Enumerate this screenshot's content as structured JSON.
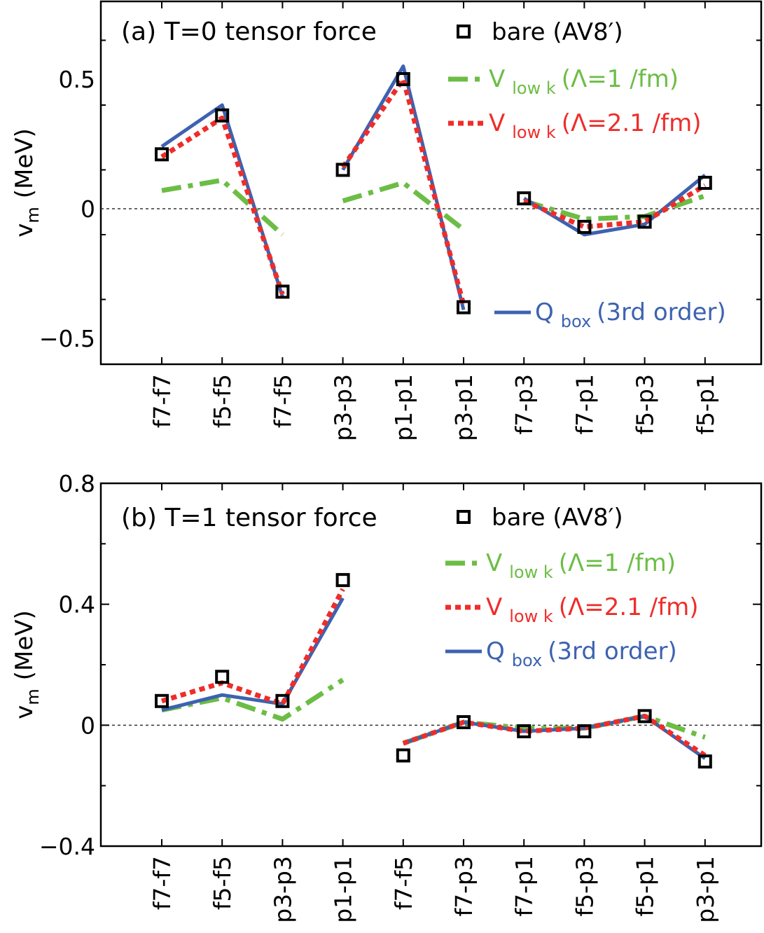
{
  "chart_data": [
    {
      "type": "line",
      "panel": "a",
      "title": "(a) T=0 tensor force",
      "ylabel": "v",
      "ylabel_sub": "m",
      "ylabel_unit": "(MeV)",
      "ylim": [
        -0.6,
        0.8
      ],
      "yticks": [
        -0.5,
        0,
        0.5
      ],
      "ytick_labels": [
        "−0.5",
        "0",
        "0.5"
      ],
      "zero_line": true,
      "categories": [
        "f7-f7",
        "f5-f5",
        "f7-f5",
        "p3-p3",
        "p1-p1",
        "p3-p1",
        "f7-p3",
        "f7-p1",
        "f5-p3",
        "f5-p1"
      ],
      "groups": [
        [
          0,
          1,
          2
        ],
        [
          3,
          4,
          5
        ],
        [
          6,
          7,
          8,
          9
        ]
      ],
      "series": [
        {
          "key": "bare",
          "name": "bare (AV8′)",
          "style": "marker",
          "color": "#000000",
          "values": [
            0.21,
            0.36,
            -0.32,
            0.15,
            0.5,
            -0.38,
            0.04,
            -0.07,
            -0.05,
            0.1
          ]
        },
        {
          "key": "vlowk1",
          "style": "dashdot",
          "color": "#6cbd45",
          "values": [
            0.07,
            0.11,
            -0.1,
            0.03,
            0.1,
            -0.08,
            0.03,
            -0.04,
            -0.03,
            0.05
          ]
        },
        {
          "key": "vlowk21",
          "style": "dotted",
          "color": "#ee2d2a",
          "values": [
            0.2,
            0.35,
            -0.33,
            0.16,
            0.5,
            -0.37,
            0.03,
            -0.07,
            -0.05,
            0.09
          ]
        },
        {
          "key": "qbox",
          "style": "solid",
          "color": "#3d62b0",
          "values": [
            0.24,
            0.4,
            -0.34,
            0.15,
            0.55,
            -0.39,
            0.04,
            -0.1,
            -0.06,
            0.13
          ]
        }
      ],
      "legend": {
        "bare": "bare (AV8′)",
        "vlowk1": {
          "main": "V",
          "sub": "low k",
          "rest": "(Λ=1 /fm)"
        },
        "vlowk21": {
          "main": "V",
          "sub": "low k",
          "rest": "(Λ=2.1 /fm)"
        },
        "qbox": {
          "main": "Q",
          "sub": "box",
          "rest": "(3rd order)"
        }
      }
    },
    {
      "type": "line",
      "panel": "b",
      "title": "(b) T=1 tensor force",
      "ylabel": "v",
      "ylabel_sub": "m",
      "ylabel_unit": "(MeV)",
      "ylim": [
        -0.4,
        0.8
      ],
      "yticks": [
        -0.4,
        0,
        0.4,
        0.8
      ],
      "ytick_labels": [
        "−0.4",
        "0",
        "0.4",
        "0.8"
      ],
      "zero_line": true,
      "categories": [
        "f7-f7",
        "f5-f5",
        "p3-p3",
        "p1-p1",
        "f7-f5",
        "f7-p3",
        "f7-p1",
        "f5-p3",
        "f5-p1",
        "p3-p1"
      ],
      "groups": [
        [
          0,
          1,
          2,
          3
        ],
        [
          4,
          5,
          6,
          7,
          8,
          9
        ]
      ],
      "series": [
        {
          "key": "bare",
          "name": "bare (AV8′)",
          "style": "marker",
          "color": "#000000",
          "values": [
            0.08,
            0.16,
            0.08,
            0.48,
            -0.1,
            0.01,
            -0.02,
            -0.02,
            0.03,
            -0.12
          ]
        },
        {
          "key": "vlowk1",
          "style": "dashdot",
          "color": "#6cbd45",
          "values": [
            0.05,
            0.09,
            0.02,
            0.15,
            -0.06,
            0.01,
            -0.01,
            -0.01,
            0.03,
            -0.04
          ]
        },
        {
          "key": "vlowk21",
          "style": "dotted",
          "color": "#ee2d2a",
          "values": [
            0.08,
            0.14,
            0.07,
            0.45,
            -0.06,
            0.01,
            -0.02,
            -0.01,
            0.03,
            -0.1
          ]
        },
        {
          "key": "qbox",
          "style": "solid",
          "color": "#3d62b0",
          "values": [
            0.05,
            0.1,
            0.07,
            0.42,
            -0.06,
            0.01,
            -0.02,
            -0.01,
            0.03,
            -0.11
          ]
        }
      ],
      "legend": {
        "bare": "bare (AV8′)",
        "vlowk1": {
          "main": "V",
          "sub": "low k",
          "rest": "(Λ=1 /fm)"
        },
        "vlowk21": {
          "main": "V",
          "sub": "low k",
          "rest": "(Λ=2.1 /fm)"
        },
        "qbox": {
          "main": "Q",
          "sub": "box",
          "rest": "(3rd order)"
        }
      }
    }
  ]
}
